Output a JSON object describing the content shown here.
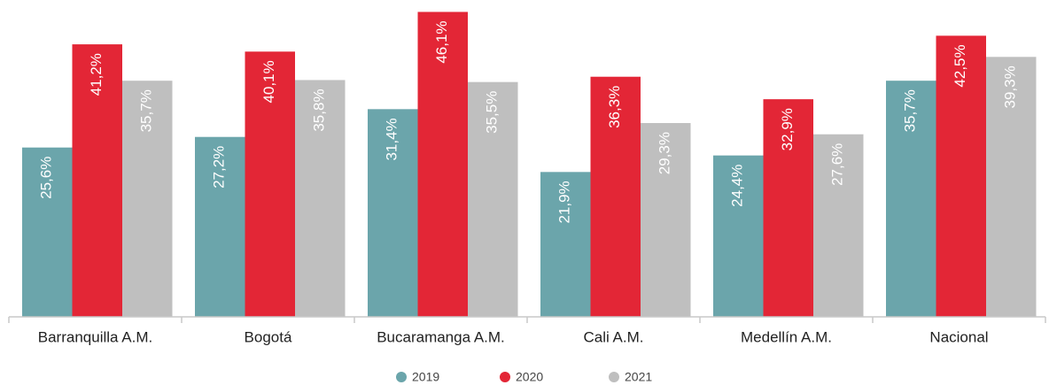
{
  "chart_data": {
    "type": "bar",
    "categories": [
      "Barranquilla A.M.",
      "Bogotá",
      "Bucaramanga A.M.",
      "Cali A.M.",
      "Medellín A.M.",
      "Nacional"
    ],
    "series": [
      {
        "name": "2019",
        "color": "#6ba5ab",
        "values": [
          25.6,
          27.2,
          31.4,
          21.9,
          24.4,
          35.7
        ],
        "value_labels": [
          "25,6%",
          "27,2%",
          "31,4%",
          "21,9%",
          "24,4%",
          "35,7%"
        ]
      },
      {
        "name": "2020",
        "color": "#e32636",
        "values": [
          41.2,
          40.1,
          46.1,
          36.3,
          32.9,
          42.5
        ],
        "value_labels": [
          "41,2%",
          "40,1%",
          "46,1%",
          "36,3%",
          "32,9%",
          "42,5%"
        ]
      },
      {
        "name": "2021",
        "color": "#bfbfbf",
        "values": [
          35.7,
          35.8,
          35.5,
          29.3,
          27.6,
          39.3
        ],
        "value_labels": [
          "35,7%",
          "35,8%",
          "35,5%",
          "29,3%",
          "27,6%",
          "39,3%"
        ]
      }
    ],
    "ylim": [
      0,
      47.5
    ]
  }
}
